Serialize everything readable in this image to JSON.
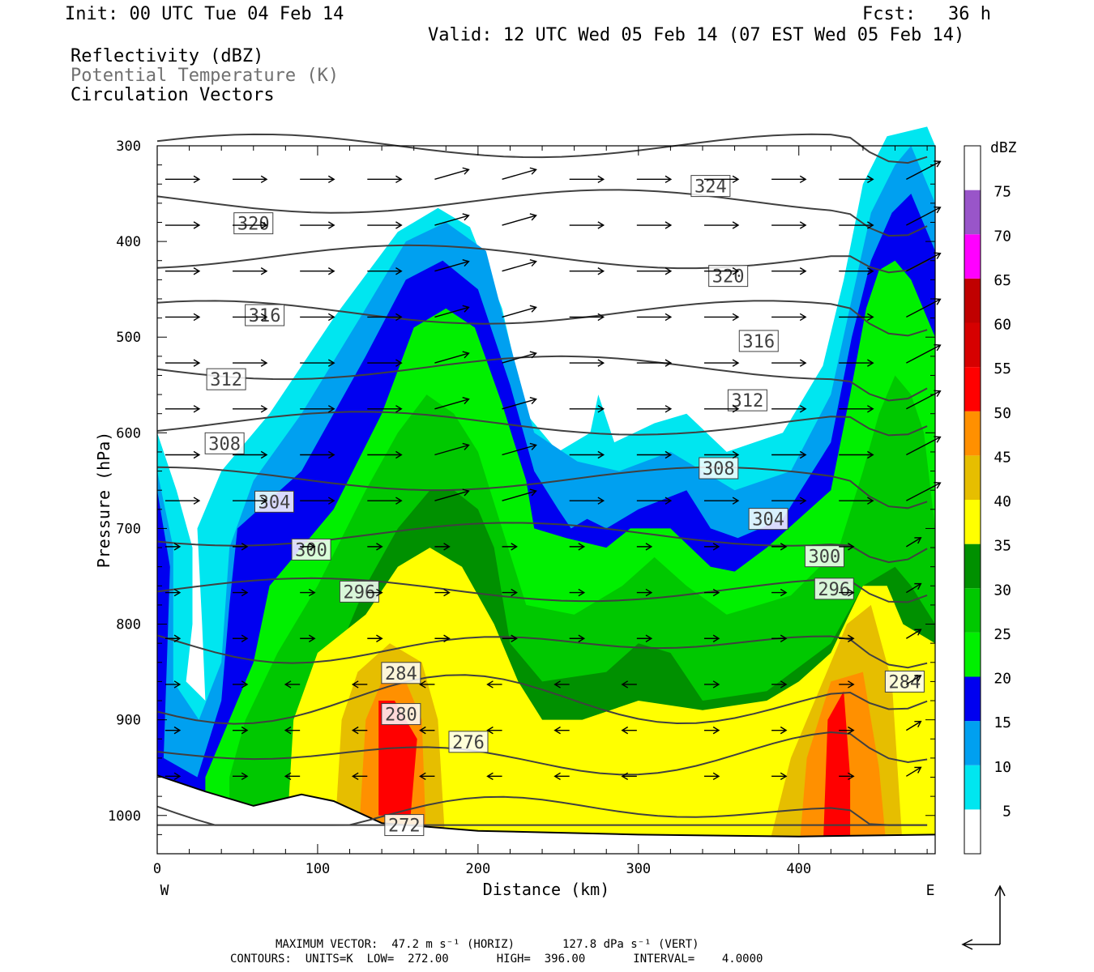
{
  "header": {
    "init": "Init: 00 UTC Tue 04 Feb 14",
    "fcst": "Fcst:   36 h",
    "valid": "Valid: 12 UTC Wed 05 Feb 14 (07 EST Wed 05 Feb 14)",
    "field1": "Reflectivity (dBZ)",
    "field2": "Potential Temperature (K)",
    "field3": "Circulation Vectors"
  },
  "footer": {
    "max_vector": "MAXIMUM VECTOR:  47.2 m s⁻¹ (HORIZ)       127.8 dPa s⁻¹ (VERT)",
    "contours": "CONTOURS:  UNITS=K  LOW=  272.00       HIGH=  396.00       INTERVAL=    4.0000"
  },
  "chart_data": {
    "type": "heatmap",
    "xlabel": "Distance (km)",
    "ylabel": "Pressure (hPa)",
    "xlim": [
      0,
      485
    ],
    "ylim": [
      1040,
      300
    ],
    "x_ticks": [
      0,
      100,
      200,
      300,
      400
    ],
    "y_ticks": [
      300,
      400,
      500,
      600,
      700,
      800,
      900,
      1000
    ],
    "x_end_labels": {
      "left": "W",
      "right": "E"
    },
    "colorbar": {
      "unit": "dBZ",
      "levels": [
        5,
        10,
        15,
        20,
        25,
        30,
        35,
        40,
        45,
        50,
        55,
        60,
        65,
        70,
        75
      ],
      "colors": [
        "#ffffff",
        "#00e6f0",
        "#00a0f0",
        "#0000f0",
        "#00f000",
        "#00c800",
        "#009000",
        "#ffff00",
        "#e6be00",
        "#ff9000",
        "#ff0000",
        "#d60000",
        "#c00000",
        "#ff00ff",
        "#9955c9",
        "#ffffff"
      ]
    },
    "theta_contours": {
      "unit": "K",
      "labels": [
        {
          "value": 324,
          "x": 345,
          "p": 342
        },
        {
          "value": 320,
          "x": 60,
          "p": 381
        },
        {
          "value": 320,
          "x": 356,
          "p": 436
        },
        {
          "value": 316,
          "x": 67,
          "p": 477
        },
        {
          "value": 316,
          "x": 375,
          "p": 504
        },
        {
          "value": 312,
          "x": 43,
          "p": 544
        },
        {
          "value": 312,
          "x": 368,
          "p": 566
        },
        {
          "value": 308,
          "x": 42,
          "p": 611
        },
        {
          "value": 308,
          "x": 350,
          "p": 637
        },
        {
          "value": 304,
          "x": 73,
          "p": 672
        },
        {
          "value": 304,
          "x": 381,
          "p": 690
        },
        {
          "value": 300,
          "x": 96,
          "p": 722
        },
        {
          "value": 300,
          "x": 416,
          "p": 729
        },
        {
          "value": 296,
          "x": 126,
          "p": 766
        },
        {
          "value": 296,
          "x": 422,
          "p": 763
        },
        {
          "value": 284,
          "x": 152,
          "p": 851
        },
        {
          "value": 284,
          "x": 466,
          "p": 860
        },
        {
          "value": 280,
          "x": 152,
          "p": 894
        },
        {
          "value": 276,
          "x": 194,
          "p": 923
        },
        {
          "value": 272,
          "x": 154,
          "p": 1010
        }
      ]
    }
  }
}
